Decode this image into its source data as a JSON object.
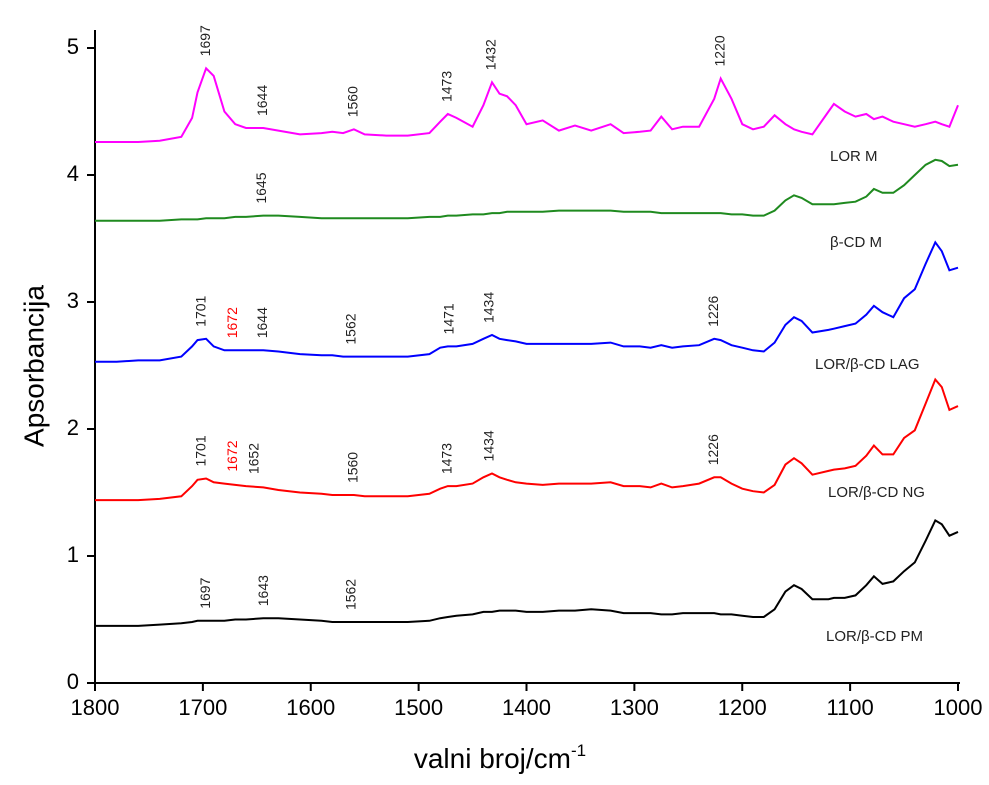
{
  "chart_data": {
    "type": "line",
    "ylabel": "Apsorbancija",
    "xlabel": "valni broj/cm",
    "xlabel_superscript": "-1",
    "xlim": [
      1800,
      1000
    ],
    "xticks": [
      1800,
      1700,
      1600,
      1500,
      1400,
      1300,
      1200,
      1100,
      1000
    ],
    "ylim": [
      0,
      5
    ],
    "yticks": [
      0,
      1,
      2,
      3,
      4,
      5
    ],
    "x": [
      1800,
      1780,
      1760,
      1740,
      1720,
      1710,
      1705,
      1697,
      1690,
      1680,
      1670,
      1660,
      1644,
      1630,
      1610,
      1590,
      1580,
      1570,
      1560,
      1550,
      1530,
      1510,
      1490,
      1480,
      1473,
      1465,
      1450,
      1440,
      1432,
      1425,
      1418,
      1410,
      1400,
      1385,
      1370,
      1355,
      1340,
      1322,
      1310,
      1295,
      1285,
      1275,
      1265,
      1255,
      1240,
      1226,
      1220,
      1210,
      1200,
      1190,
      1180,
      1170,
      1160,
      1152,
      1145,
      1135,
      1120,
      1115,
      1105,
      1095,
      1085,
      1078,
      1070,
      1060,
      1050,
      1040,
      1030,
      1021,
      1015,
      1008,
      1000
    ],
    "series": [
      {
        "name": "LOR M",
        "color": "#ff00ff",
        "values": [
          4.26,
          4.26,
          4.26,
          4.27,
          4.3,
          4.45,
          4.65,
          4.84,
          4.78,
          4.5,
          4.4,
          4.37,
          4.37,
          4.35,
          4.32,
          4.33,
          4.34,
          4.33,
          4.36,
          4.32,
          4.31,
          4.31,
          4.33,
          4.42,
          4.48,
          4.45,
          4.38,
          4.55,
          4.73,
          4.64,
          4.62,
          4.55,
          4.4,
          4.43,
          4.35,
          4.39,
          4.35,
          4.4,
          4.33,
          4.34,
          4.35,
          4.46,
          4.36,
          4.38,
          4.38,
          4.6,
          4.76,
          4.6,
          4.4,
          4.36,
          4.38,
          4.47,
          4.4,
          4.36,
          4.34,
          4.32,
          4.5,
          4.56,
          4.5,
          4.46,
          4.48,
          4.44,
          4.46,
          4.42,
          4.4,
          4.38,
          4.4,
          4.42,
          4.4,
          4.38,
          4.55
        ],
        "peaks": [
          1697,
          1644,
          1560,
          1473,
          1432,
          1220
        ],
        "peak_colors": [
          "#222222",
          "#222222",
          "#222222",
          "#222222",
          "#222222",
          "#222222"
        ]
      },
      {
        "name": "β-CD M",
        "color": "#1f8a1f",
        "values": [
          3.64,
          3.64,
          3.64,
          3.64,
          3.65,
          3.65,
          3.65,
          3.66,
          3.66,
          3.66,
          3.67,
          3.67,
          3.68,
          3.68,
          3.67,
          3.66,
          3.66,
          3.66,
          3.66,
          3.66,
          3.66,
          3.66,
          3.67,
          3.67,
          3.68,
          3.68,
          3.69,
          3.69,
          3.7,
          3.7,
          3.71,
          3.71,
          3.71,
          3.71,
          3.72,
          3.72,
          3.72,
          3.72,
          3.71,
          3.71,
          3.71,
          3.7,
          3.7,
          3.7,
          3.7,
          3.7,
          3.7,
          3.69,
          3.69,
          3.68,
          3.68,
          3.72,
          3.8,
          3.84,
          3.82,
          3.77,
          3.77,
          3.77,
          3.78,
          3.79,
          3.83,
          3.89,
          3.86,
          3.86,
          3.92,
          4.0,
          4.08,
          4.12,
          4.11,
          4.07,
          4.08
        ],
        "peaks": [
          1645
        ],
        "peak_colors": [
          "#222222"
        ]
      },
      {
        "name": "LOR/β-CD LAG",
        "color": "#0000ff",
        "values": [
          2.53,
          2.53,
          2.54,
          2.54,
          2.57,
          2.65,
          2.7,
          2.71,
          2.65,
          2.62,
          2.62,
          2.62,
          2.62,
          2.61,
          2.59,
          2.58,
          2.58,
          2.57,
          2.57,
          2.57,
          2.57,
          2.57,
          2.59,
          2.64,
          2.65,
          2.65,
          2.67,
          2.71,
          2.74,
          2.71,
          2.7,
          2.69,
          2.67,
          2.67,
          2.67,
          2.67,
          2.67,
          2.68,
          2.65,
          2.65,
          2.64,
          2.66,
          2.64,
          2.65,
          2.66,
          2.71,
          2.7,
          2.66,
          2.64,
          2.62,
          2.61,
          2.68,
          2.82,
          2.88,
          2.85,
          2.76,
          2.78,
          2.79,
          2.81,
          2.83,
          2.9,
          2.97,
          2.92,
          2.88,
          3.03,
          3.1,
          3.3,
          3.47,
          3.4,
          3.25,
          3.27
        ],
        "peaks": [
          1701,
          1672,
          1644,
          1562,
          1471,
          1434,
          1226
        ],
        "peak_colors": [
          "#222222",
          "#ff0000",
          "#222222",
          "#222222",
          "#222222",
          "#222222",
          "#222222"
        ]
      },
      {
        "name": "LOR/β-CD NG",
        "color": "#ff0000",
        "values": [
          1.44,
          1.44,
          1.44,
          1.45,
          1.47,
          1.55,
          1.6,
          1.61,
          1.58,
          1.57,
          1.56,
          1.55,
          1.54,
          1.52,
          1.5,
          1.49,
          1.48,
          1.48,
          1.48,
          1.47,
          1.47,
          1.47,
          1.49,
          1.53,
          1.55,
          1.55,
          1.57,
          1.62,
          1.65,
          1.62,
          1.6,
          1.58,
          1.57,
          1.56,
          1.57,
          1.57,
          1.57,
          1.58,
          1.55,
          1.55,
          1.54,
          1.57,
          1.54,
          1.55,
          1.57,
          1.62,
          1.62,
          1.57,
          1.53,
          1.51,
          1.5,
          1.56,
          1.72,
          1.77,
          1.73,
          1.64,
          1.67,
          1.68,
          1.69,
          1.71,
          1.79,
          1.87,
          1.8,
          1.8,
          1.93,
          1.99,
          2.2,
          2.39,
          2.33,
          2.15,
          2.18
        ],
        "peaks": [
          1701,
          1672,
          1652,
          1560,
          1473,
          1434,
          1226
        ],
        "peak_colors": [
          "#222222",
          "#ff0000",
          "#222222",
          "#222222",
          "#222222",
          "#222222",
          "#222222"
        ]
      },
      {
        "name": "LOR/β-CD PM",
        "color": "#000000",
        "values": [
          0.45,
          0.45,
          0.45,
          0.46,
          0.47,
          0.48,
          0.49,
          0.49,
          0.49,
          0.49,
          0.5,
          0.5,
          0.51,
          0.51,
          0.5,
          0.49,
          0.48,
          0.48,
          0.48,
          0.48,
          0.48,
          0.48,
          0.49,
          0.51,
          0.52,
          0.53,
          0.54,
          0.56,
          0.56,
          0.57,
          0.57,
          0.57,
          0.56,
          0.56,
          0.57,
          0.57,
          0.58,
          0.57,
          0.55,
          0.55,
          0.55,
          0.54,
          0.54,
          0.55,
          0.55,
          0.55,
          0.54,
          0.54,
          0.53,
          0.52,
          0.52,
          0.58,
          0.72,
          0.77,
          0.74,
          0.66,
          0.66,
          0.67,
          0.67,
          0.69,
          0.77,
          0.84,
          0.78,
          0.8,
          0.88,
          0.95,
          1.12,
          1.28,
          1.25,
          1.16,
          1.19
        ],
        "peaks": [
          1697,
          1643,
          1562
        ],
        "peak_colors": [
          "#222222",
          "#222222",
          "#222222"
        ]
      }
    ]
  }
}
